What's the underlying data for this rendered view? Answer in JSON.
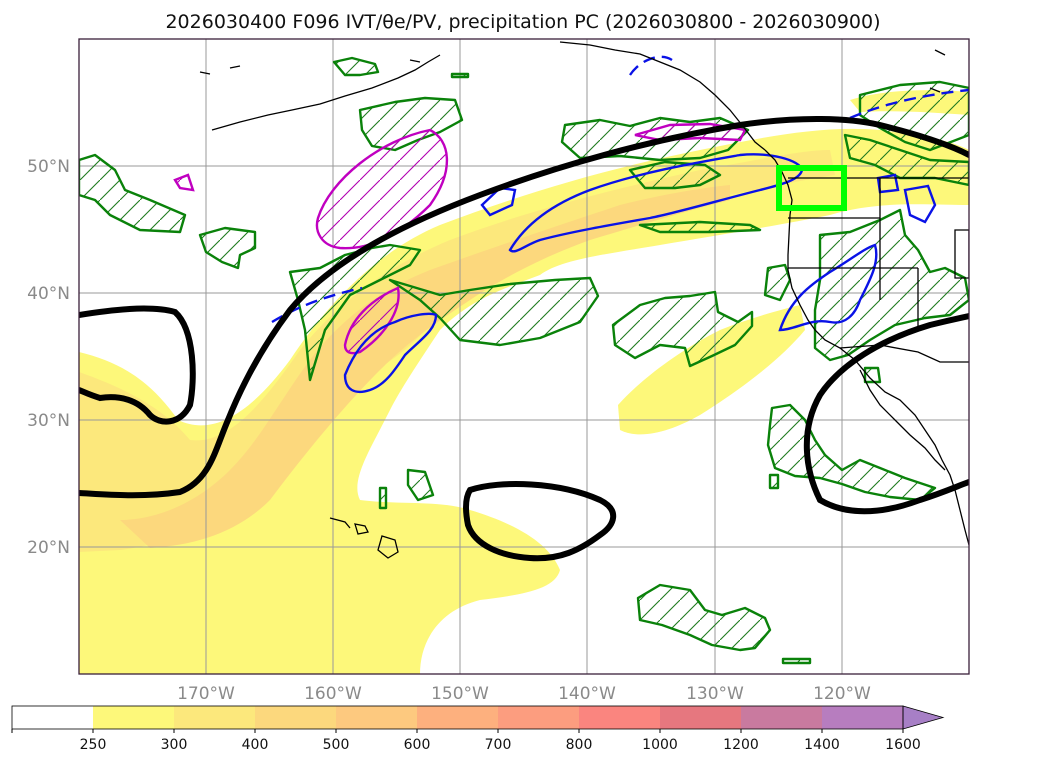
{
  "chart_data": {
    "type": "map",
    "title": "2026030400 F096 IVT/θe/PV, precipitation PC (2026030800 - 2026030900)",
    "lon_range": [
      -180,
      -110
    ],
    "lat_range": [
      10,
      60
    ],
    "lon_ticks": [
      {
        "value": -170,
        "label": "170°W"
      },
      {
        "value": -160,
        "label": "160°W"
      },
      {
        "value": -150,
        "label": "150°W"
      },
      {
        "value": -140,
        "label": "140°W"
      },
      {
        "value": -130,
        "label": "130°W"
      },
      {
        "value": -120,
        "label": "120°W"
      }
    ],
    "lat_ticks": [
      {
        "value": 50,
        "label": "50°N"
      },
      {
        "value": 40,
        "label": "40°N"
      },
      {
        "value": 30,
        "label": "30°N"
      },
      {
        "value": 20,
        "label": "20°N"
      }
    ],
    "colorbar": {
      "levels": [
        250,
        300,
        400,
        500,
        600,
        700,
        800,
        1000,
        1200,
        1400,
        1600
      ],
      "labels": [
        "250",
        "300",
        "400",
        "500",
        "600",
        "700",
        "800",
        "1000",
        "1200",
        "1400",
        "1600"
      ],
      "colors": [
        "#ffffff",
        "#fdf87a",
        "#fce87c",
        "#fcd87d",
        "#fdc97f",
        "#fdb07e",
        "#fc9d7f",
        "#fa857f",
        "#e6777f",
        "#c97a9f",
        "#b77dbf",
        "#a77fc6"
      ],
      "extend": "max"
    },
    "highlight_box": {
      "lon": [
        -125,
        -120
      ],
      "lat": [
        46.5,
        49.7
      ],
      "color": "#00ff00"
    }
  }
}
